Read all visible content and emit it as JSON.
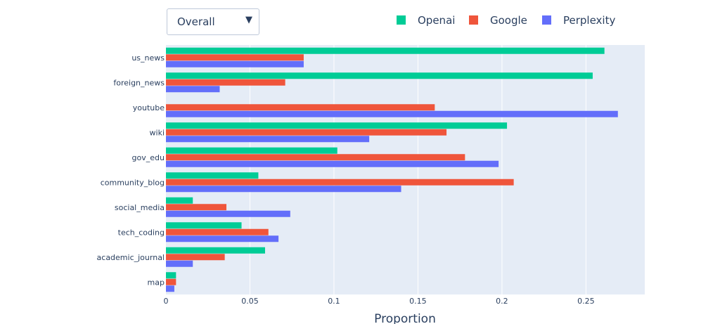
{
  "dropdown": {
    "selected": "Overall",
    "arrow_icon": "triangle-down-icon"
  },
  "chart_data": {
    "type": "bar",
    "orientation": "horizontal",
    "title": "",
    "xlabel": "Proportion",
    "ylabel": "",
    "xlim": [
      0,
      0.285
    ],
    "xticks": [
      0,
      0.05,
      0.1,
      0.15,
      0.2,
      0.25
    ],
    "xtick_labels": [
      "0",
      "0.05",
      "0.1",
      "0.15",
      "0.2",
      "0.25"
    ],
    "grid": true,
    "legend_position": "top-right",
    "categories": [
      "us_news",
      "foreign_news",
      "youtube",
      "wiki",
      "gov_edu",
      "community_blog",
      "social_media",
      "tech_coding",
      "academic_journal",
      "map"
    ],
    "series": [
      {
        "name": "Openai",
        "color": "#00cc96",
        "values": [
          0.261,
          0.254,
          0.0,
          0.203,
          0.102,
          0.055,
          0.016,
          0.045,
          0.059,
          0.006
        ]
      },
      {
        "name": "Google",
        "color": "#ef553b",
        "values": [
          0.082,
          0.071,
          0.16,
          0.167,
          0.178,
          0.207,
          0.036,
          0.061,
          0.035,
          0.006
        ]
      },
      {
        "name": "Perplexity",
        "color": "#636efa",
        "values": [
          0.082,
          0.032,
          0.269,
          0.121,
          0.198,
          0.14,
          0.074,
          0.067,
          0.016,
          0.005
        ]
      }
    ]
  }
}
